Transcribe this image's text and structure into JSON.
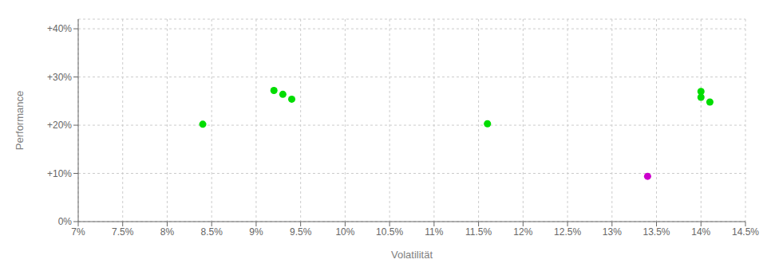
{
  "chart_data": {
    "type": "scatter",
    "x_label": "Volatilität",
    "y_label": "Performance",
    "xlim": [
      0.07,
      0.145
    ],
    "ylim": [
      0.0,
      0.42
    ],
    "xticks": [
      {
        "value": 0.07,
        "label": "7%"
      },
      {
        "value": 0.075,
        "label": "7.5%"
      },
      {
        "value": 0.08,
        "label": "8%"
      },
      {
        "value": 0.085,
        "label": "8.5%"
      },
      {
        "value": 0.09,
        "label": "9%"
      },
      {
        "value": 0.095,
        "label": "9.5%"
      },
      {
        "value": 0.1,
        "label": "10%"
      },
      {
        "value": 0.105,
        "label": "10.5%"
      },
      {
        "value": 0.11,
        "label": "11%"
      },
      {
        "value": 0.115,
        "label": "11.5%"
      },
      {
        "value": 0.12,
        "label": "12%"
      },
      {
        "value": 0.125,
        "label": "12.5%"
      },
      {
        "value": 0.13,
        "label": "13%"
      },
      {
        "value": 0.135,
        "label": "13.5%"
      },
      {
        "value": 0.14,
        "label": "14%"
      },
      {
        "value": 0.145,
        "label": "14.5%"
      }
    ],
    "yticks": [
      {
        "value": 0.0,
        "label": "0%"
      },
      {
        "value": 0.1,
        "label": "+10%"
      },
      {
        "value": 0.2,
        "label": "+20%"
      },
      {
        "value": 0.3,
        "label": "+30%"
      },
      {
        "value": 0.4,
        "label": "+40%"
      }
    ],
    "grid": true,
    "series": [
      {
        "color": "#00dd00",
        "x": [
          0.084,
          0.092,
          0.093,
          0.094,
          0.116,
          0.14,
          0.14,
          0.141
        ],
        "values": [
          0.202,
          0.272,
          0.264,
          0.254,
          0.203,
          0.27,
          0.258,
          0.248
        ]
      },
      {
        "color": "#cc00cc",
        "x": [
          0.134
        ],
        "values": [
          0.094
        ]
      }
    ]
  }
}
